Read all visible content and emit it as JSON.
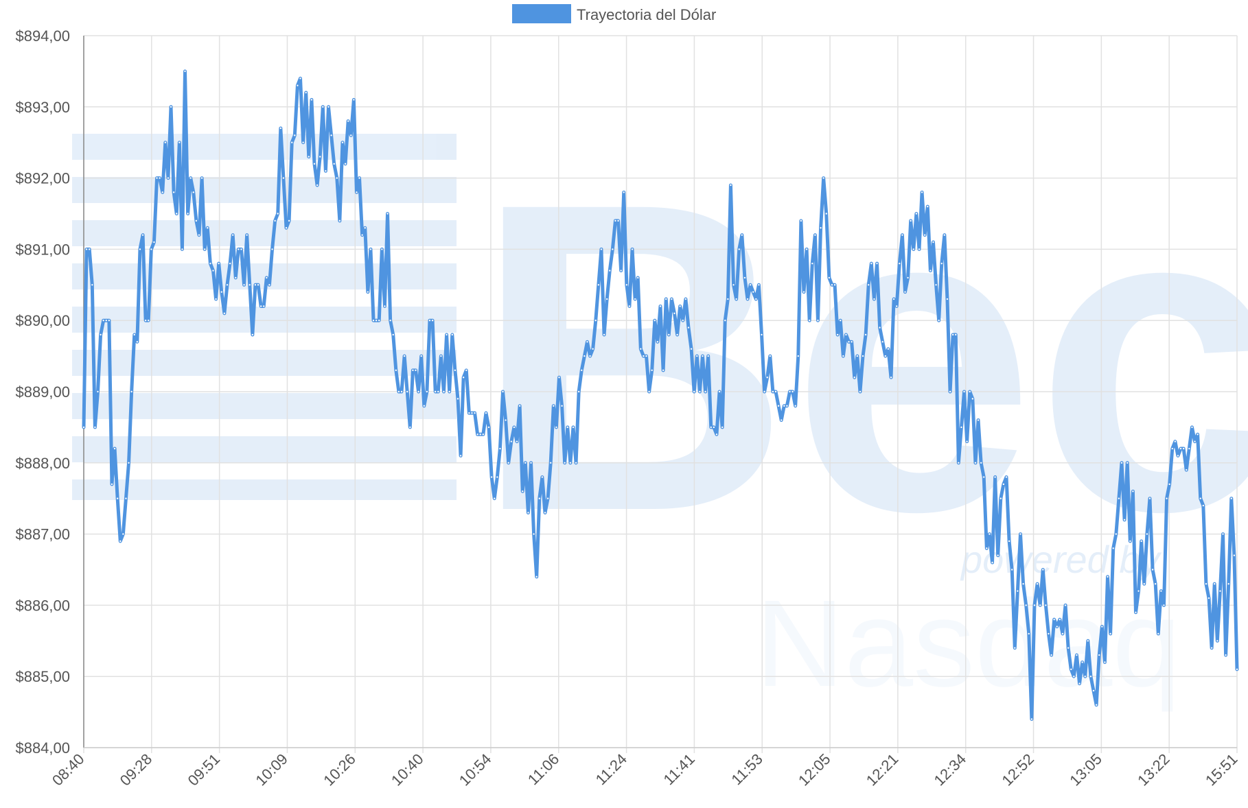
{
  "colors": {
    "line": "#4f94e0",
    "grid": "#e1e1e1",
    "text": "#555555",
    "watermark": "#4a8bd9"
  },
  "watermark": {
    "main": "Bec",
    "sub_top": "powered by",
    "sub_bottom": "Nasdaq"
  },
  "chart_data": {
    "type": "line",
    "title": "",
    "xlabel": "",
    "ylabel": "",
    "legend_position": "top-center",
    "grid": true,
    "ylim": [
      884,
      894
    ],
    "y_ticks": [
      "$894,00",
      "$893,00",
      "$892,00",
      "$891,00",
      "$890,00",
      "$889,00",
      "$888,00",
      "$887,00",
      "$886,00",
      "$885,00",
      "$884,00"
    ],
    "x_ticks": [
      "08:40",
      "09:28",
      "09:51",
      "10:09",
      "10:26",
      "10:40",
      "10:54",
      "11:06",
      "11:24",
      "11:41",
      "11:53",
      "12:05",
      "12:21",
      "12:34",
      "12:52",
      "13:05",
      "13:22",
      "15:51"
    ],
    "series": [
      {
        "name": "Trayectoria del Dólar",
        "values": [
          888.5,
          891.0,
          891.0,
          890.5,
          888.5,
          889.0,
          889.8,
          890.0,
          890.0,
          890.0,
          887.7,
          888.2,
          887.5,
          886.9,
          887.0,
          887.5,
          888.0,
          889.0,
          889.8,
          889.7,
          891.0,
          891.2,
          890.0,
          890.0,
          891.0,
          891.1,
          892.0,
          892.0,
          891.8,
          892.5,
          892.0,
          893.0,
          891.8,
          891.5,
          892.5,
          891.0,
          893.5,
          891.5,
          892.0,
          891.8,
          891.4,
          891.2,
          892.0,
          891.0,
          891.3,
          890.8,
          890.7,
          890.3,
          890.8,
          890.4,
          890.1,
          890.5,
          890.8,
          891.2,
          890.6,
          891.0,
          891.0,
          890.5,
          891.2,
          890.5,
          889.8,
          890.5,
          890.5,
          890.2,
          890.2,
          890.6,
          890.5,
          891.0,
          891.4,
          891.5,
          892.7,
          892.0,
          891.3,
          891.4,
          892.5,
          892.6,
          893.3,
          893.4,
          892.5,
          893.2,
          892.3,
          893.1,
          892.2,
          891.9,
          892.3,
          893.0,
          892.1,
          893.0,
          892.6,
          892.2,
          892.0,
          891.4,
          892.5,
          892.2,
          892.8,
          892.6,
          893.1,
          891.8,
          892.0,
          891.2,
          891.3,
          890.4,
          891.0,
          890.0,
          890.0,
          890.0,
          891.0,
          890.2,
          891.5,
          890.0,
          889.8,
          889.3,
          889.0,
          889.0,
          889.5,
          889.0,
          888.5,
          889.3,
          889.3,
          889.0,
          889.5,
          888.8,
          889.0,
          890.0,
          890.0,
          889.0,
          889.0,
          889.5,
          889.0,
          889.8,
          889.0,
          889.8,
          889.3,
          888.9,
          888.1,
          889.2,
          889.3,
          888.7,
          888.7,
          888.7,
          888.4,
          888.4,
          888.4,
          888.7,
          888.5,
          887.8,
          887.5,
          887.8,
          888.2,
          889.0,
          888.6,
          888.0,
          888.3,
          888.5,
          888.3,
          888.8,
          887.6,
          888.0,
          887.3,
          888.0,
          887.0,
          886.4,
          887.5,
          887.8,
          887.3,
          887.5,
          888.0,
          888.8,
          888.5,
          889.2,
          888.8,
          888.0,
          888.5,
          888.0,
          888.5,
          888.0,
          889.0,
          889.3,
          889.5,
          889.7,
          889.5,
          889.6,
          890.0,
          890.5,
          891.0,
          889.8,
          890.3,
          890.7,
          891.0,
          891.4,
          891.4,
          890.7,
          891.8,
          890.5,
          890.2,
          891.0,
          890.3,
          890.6,
          889.6,
          889.5,
          889.5,
          889.0,
          889.3,
          890.0,
          889.7,
          890.2,
          889.3,
          890.3,
          889.8,
          890.3,
          890.1,
          889.8,
          890.2,
          890.0,
          890.3,
          889.9,
          889.6,
          889.0,
          889.5,
          889.0,
          889.5,
          889.0,
          889.5,
          888.5,
          888.5,
          888.4,
          889.0,
          888.5,
          890.0,
          890.3,
          891.9,
          890.5,
          890.3,
          891.0,
          891.2,
          890.6,
          890.3,
          890.5,
          890.4,
          890.3,
          890.5,
          889.8,
          889.0,
          889.2,
          889.5,
          889.0,
          889.0,
          888.8,
          888.6,
          888.8,
          888.8,
          889.0,
          889.0,
          888.8,
          889.5,
          891.4,
          890.4,
          891.0,
          890.0,
          890.8,
          891.2,
          890.0,
          891.3,
          892.0,
          891.5,
          890.6,
          890.5,
          890.5,
          889.8,
          890.0,
          889.5,
          889.8,
          889.7,
          889.7,
          889.2,
          889.5,
          889.0,
          889.5,
          889.8,
          890.5,
          890.8,
          890.3,
          890.8,
          889.9,
          889.7,
          889.5,
          889.6,
          889.2,
          890.3,
          890.2,
          890.8,
          891.2,
          890.4,
          890.6,
          891.4,
          891.0,
          891.5,
          891.0,
          891.8,
          891.2,
          891.6,
          890.7,
          891.1,
          890.5,
          890.0,
          890.8,
          891.2,
          890.3,
          889.0,
          889.8,
          889.8,
          888.0,
          888.5,
          889.0,
          888.3,
          889.0,
          888.9,
          888.0,
          888.6,
          888.0,
          887.8,
          886.8,
          887.0,
          886.6,
          887.8,
          886.7,
          887.5,
          887.7,
          887.8,
          886.9,
          886.5,
          885.4,
          886.2,
          887.0,
          886.3,
          886.0,
          885.6,
          884.4,
          886.0,
          886.3,
          886.0,
          886.5,
          886.0,
          885.6,
          885.3,
          885.8,
          885.7,
          885.8,
          885.6,
          886.0,
          885.4,
          885.1,
          885.0,
          885.3,
          884.9,
          885.2,
          885.0,
          885.5,
          885.0,
          884.8,
          884.6,
          885.3,
          885.7,
          885.2,
          886.4,
          885.6,
          886.8,
          887.0,
          887.5,
          888.0,
          887.2,
          888.0,
          886.9,
          887.6,
          885.9,
          886.2,
          886.9,
          886.3,
          887.0,
          887.5,
          886.5,
          886.3,
          885.6,
          886.2,
          886.0,
          887.5,
          887.7,
          888.2,
          888.3,
          888.1,
          888.2,
          888.2,
          887.9,
          888.2,
          888.5,
          888.3,
          888.4,
          887.5,
          887.4,
          886.3,
          886.1,
          885.4,
          886.3,
          885.5,
          886.2,
          887.0,
          885.3,
          886.3,
          887.5,
          886.7,
          885.1
        ]
      }
    ]
  }
}
